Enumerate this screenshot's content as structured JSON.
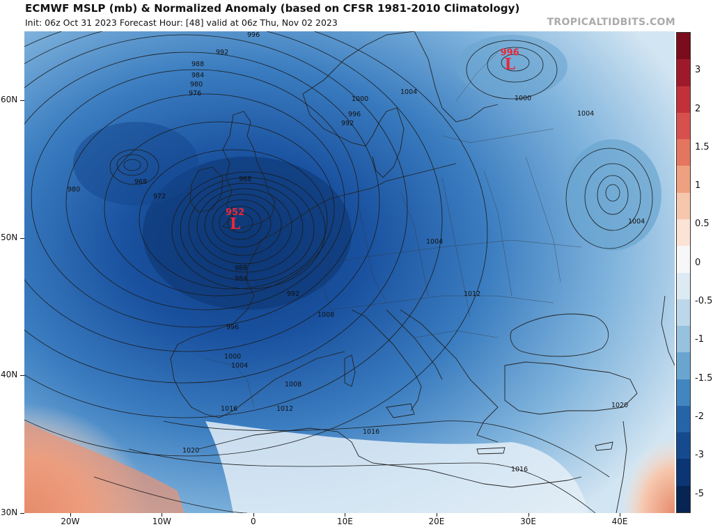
{
  "header": {
    "title": "ECMWF MSLP (mb) & Normalized Anomaly (based on CFSR 1981-2010 Climatology)",
    "subtitle": "Init: 06z Oct 31 2023   Forecast Hour: [48]   valid at 06z Thu, Nov 02 2023",
    "brand": "TROPICALTIDBITS.COM"
  },
  "map": {
    "lat_labels": [
      "60N",
      "50N",
      "40N",
      "30N"
    ],
    "lon_labels": [
      "20W",
      "10W",
      "0",
      "10E",
      "20E",
      "30E",
      "40E"
    ],
    "lows": [
      {
        "value": "952",
        "symbol": "L",
        "lat": 51.2,
        "lon": -2.0
      },
      {
        "value": "996",
        "symbol": "L",
        "lat": 62.8,
        "lon": 28.0
      }
    ],
    "contour_labels": [
      "996",
      "992",
      "988",
      "984",
      "980",
      "976",
      "968",
      "972",
      "980",
      "968",
      "952",
      "1004",
      "1000",
      "996",
      "992",
      "988",
      "984",
      "992",
      "996",
      "1000",
      "1004",
      "1008",
      "1012",
      "1016",
      "1020",
      "1004",
      "1012",
      "1016",
      "1004",
      "1000",
      "1004",
      "1016",
      "1020",
      "1008"
    ],
    "colors": {
      "land_border": "#222222",
      "contour": "#1a1a1a",
      "low_marker": "#e8293a"
    }
  },
  "colorbar": {
    "labels": [
      "3",
      "2",
      "1.5",
      "1",
      "0.5",
      "0",
      "-0.5",
      "-1",
      "-1.5",
      "-2",
      "-3",
      "-5"
    ],
    "colors": [
      "#7a0c1c",
      "#9e1a2a",
      "#c2313a",
      "#d6514d",
      "#e4765f",
      "#efa081",
      "#f6c7ad",
      "#fbe3d5",
      "#f7f7f7",
      "#dceaf3",
      "#bcd7ea",
      "#96c1df",
      "#6aa5d0",
      "#4186c0",
      "#2664a8",
      "#154a8e",
      "#0b3673",
      "#062552"
    ]
  }
}
